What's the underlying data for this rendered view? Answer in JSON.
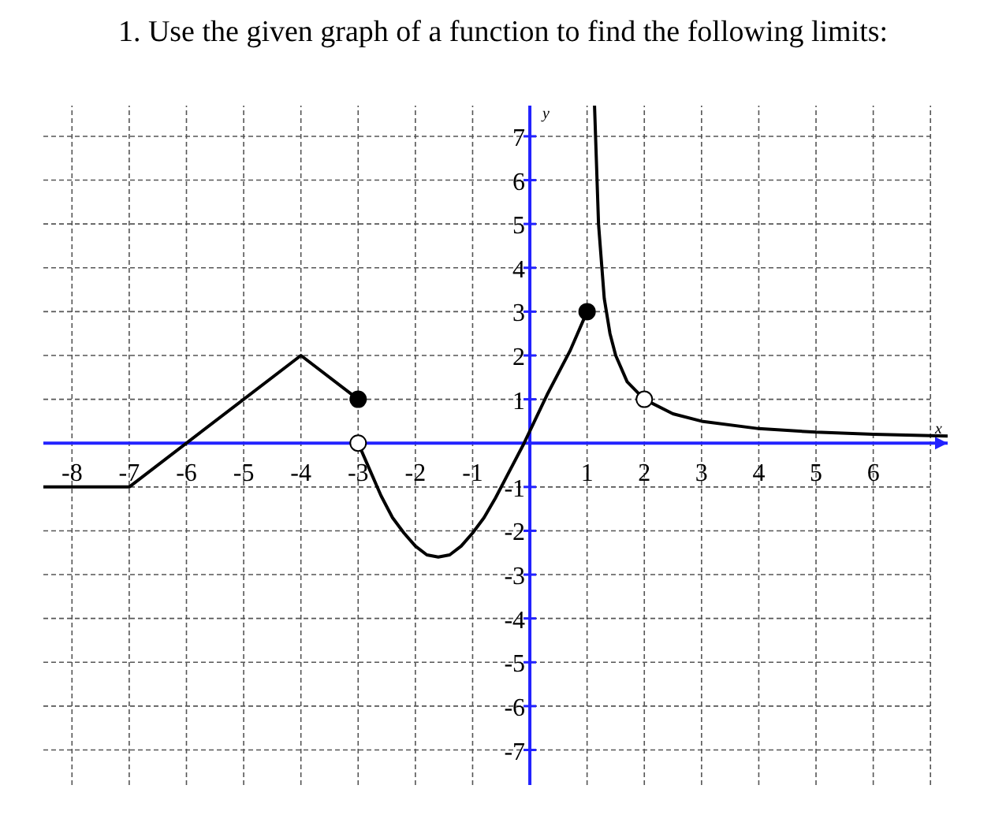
{
  "chart_data": {
    "type": "line",
    "title": "1.  Use the given graph of a function to find the following limits:",
    "xlabel": "x",
    "ylabel": "y",
    "xlim": [
      -8.5,
      7.3
    ],
    "ylim": [
      -7.8,
      7.7
    ],
    "xticks": [
      -8,
      -7,
      -6,
      -5,
      -4,
      -3,
      -2,
      -1,
      1,
      2,
      3,
      4,
      5,
      6,
      {
        "value": 7,
        "label": null
      }
    ],
    "yticks": [
      -7,
      -6,
      -5,
      -4,
      -3,
      -2,
      -1,
      1,
      2,
      3,
      4,
      5,
      6,
      7
    ],
    "grid": true,
    "series": [
      {
        "color": "#000000",
        "x": [
          -8.5,
          -7,
          -4,
          -3
        ],
        "values": [
          -1,
          -1,
          2,
          1
        ]
      },
      {
        "color": "#000000",
        "x": [
          -3,
          -2.8,
          -2.6,
          -2.4,
          -2.2,
          -2,
          -1.8,
          -1.6,
          -1.4,
          -1.2,
          -1,
          -0.8,
          -0.6,
          -0.4,
          -0.1,
          0.3,
          0.7,
          1
        ],
        "values": [
          0,
          -0.6,
          -1.2,
          -1.7,
          -2.05,
          -2.35,
          -2.55,
          -2.6,
          -2.55,
          -2.35,
          -2.05,
          -1.7,
          -1.25,
          -0.75,
          0,
          1.1,
          2.1,
          3
        ]
      },
      {
        "color": "#000000",
        "x": [
          1.13,
          1.2,
          1.3,
          1.4,
          1.5,
          1.7,
          2,
          2.5,
          3,
          4,
          5,
          6,
          7.3
        ],
        "values": [
          7.7,
          5,
          3.3,
          2.5,
          2,
          1.4,
          1,
          0.67,
          0.5,
          0.33,
          0.25,
          0.2,
          0.16
        ]
      },
      {
        "type": "scatter",
        "color": "#000000",
        "x": [
          -3,
          1
        ],
        "values": [
          1,
          3
        ]
      },
      {
        "type": "scatter",
        "color": "#ffffff",
        "x": [
          -3,
          2
        ],
        "values": [
          0,
          1
        ]
      }
    ]
  }
}
